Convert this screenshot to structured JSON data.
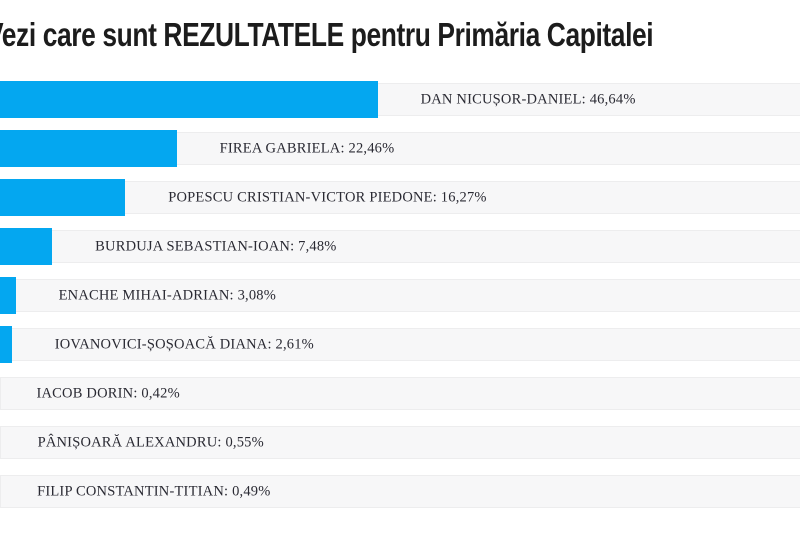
{
  "page_title": "Vezi care sunt REZULTATELE pentru Primăria Capitalei",
  "chart_data": {
    "type": "bar",
    "orientation": "horizontal",
    "title": "Vezi care sunt REZULTATELE pentru Primăria Capitalei",
    "xlabel": "",
    "ylabel": "",
    "xlim": [
      0,
      100
    ],
    "grid": false,
    "legend": "none",
    "bar_color": "#04a7f0",
    "track_color": "#f7f7f8",
    "value_format": "comma-decimal percent",
    "note": "bars are cropped at the left edge of the screenshot",
    "categories": [
      "DAN NICUȘOR-DANIEL",
      "FIREA GABRIELA",
      "POPESCU CRISTIAN-VICTOR PIEDONE",
      "BURDUJA SEBASTIAN-IOAN",
      "ENACHE MIHAI-ADRIAN",
      "IOVANOVICI-ȘOȘOACĂ DIANA",
      "IACOB DORIN",
      "PÂNIȘOARĂ ALEXANDRU",
      "FILIP CONSTANTIN-TITIAN"
    ],
    "values": [
      46.64,
      22.46,
      16.27,
      7.48,
      3.08,
      2.61,
      0.42,
      0.55,
      0.49
    ],
    "value_labels": [
      "46,64%",
      "22,46%",
      "16,27%",
      "7,48%",
      "3,08%",
      "2,61%",
      "0,42%",
      "0,55%",
      "0,49%"
    ],
    "label_separator": ": "
  }
}
